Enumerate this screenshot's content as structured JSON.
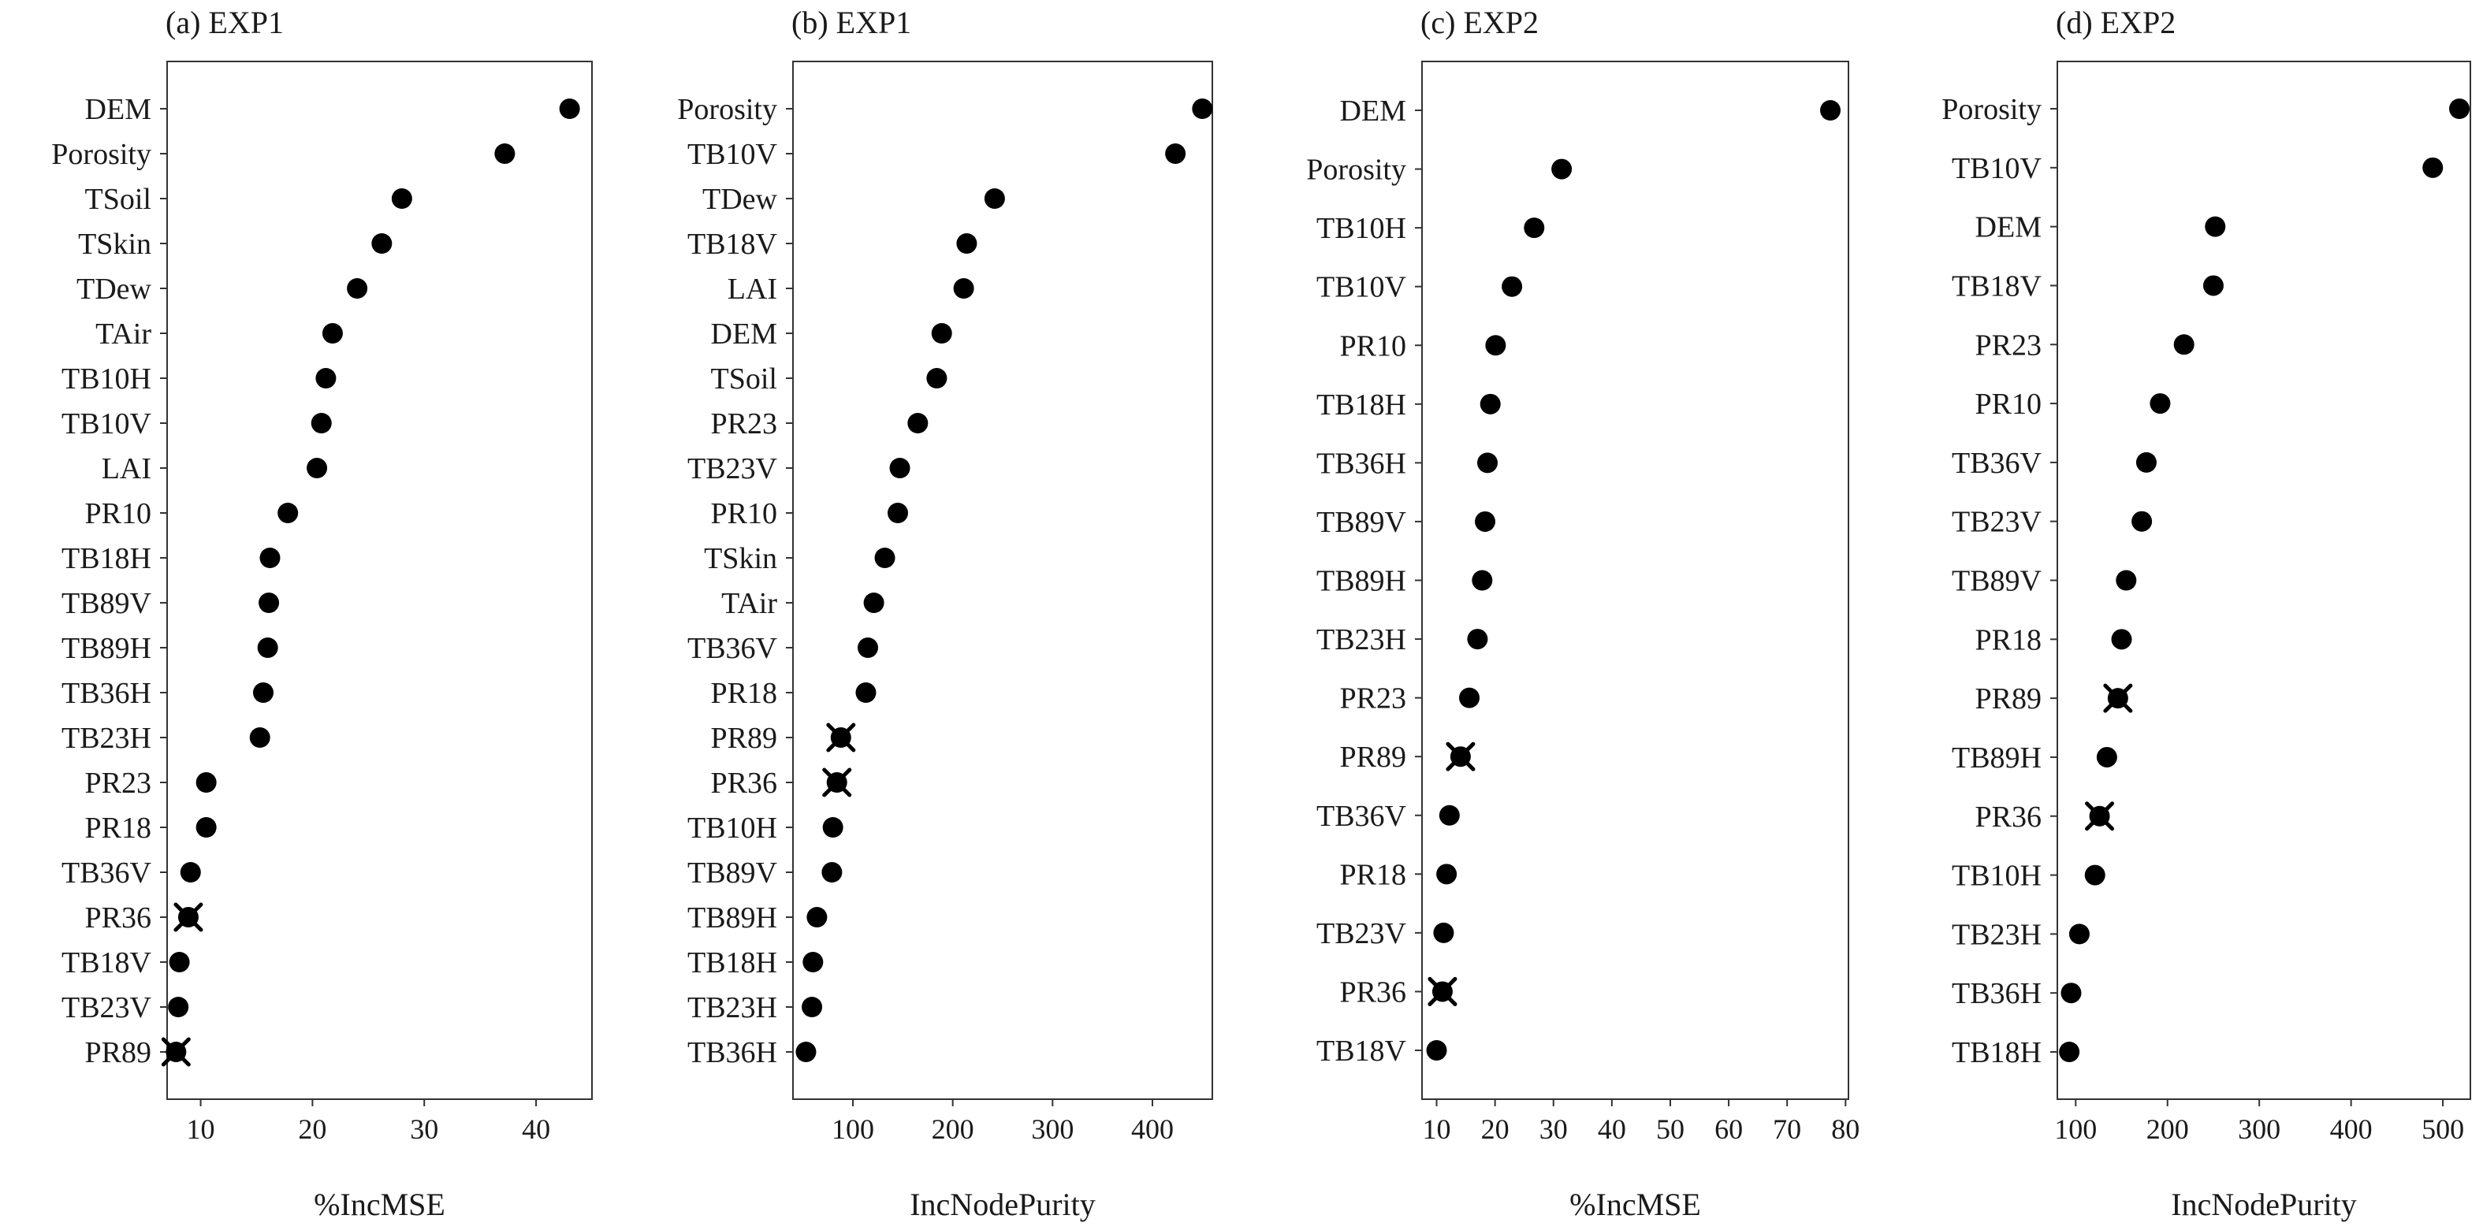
{
  "chart_data": [
    {
      "type": "scatter",
      "title": "(a) EXP1",
      "xlabel": "%IncMSE",
      "xlim": [
        7,
        45
      ],
      "xticks": [
        10,
        20,
        30,
        40
      ],
      "crossed": [
        "PR36",
        "PR89"
      ],
      "categories": [
        "DEM",
        "Porosity",
        "TSoil",
        "TSkin",
        "TDew",
        "TAir",
        "TB10H",
        "TB10V",
        "LAI",
        "PR10",
        "TB18H",
        "TB89V",
        "TB89H",
        "TB36H",
        "TB23H",
        "PR23",
        "PR18",
        "TB36V",
        "PR36",
        "TB18V",
        "TB23V",
        "PR89"
      ],
      "values": [
        43.0,
        37.2,
        28.0,
        26.2,
        24.0,
        21.8,
        21.2,
        20.8,
        20.4,
        17.8,
        16.2,
        16.1,
        16.0,
        15.6,
        15.3,
        10.5,
        10.5,
        9.1,
        8.9,
        8.1,
        8.0,
        7.8
      ]
    },
    {
      "type": "scatter",
      "title": "(b) EXP1",
      "xlabel": "IncNodePurity",
      "xlim": [
        40,
        460
      ],
      "xticks": [
        100,
        200,
        300,
        400
      ],
      "crossed": [
        "PR89",
        "PR36"
      ],
      "categories": [
        "Porosity",
        "TB10V",
        "TDew",
        "TB18V",
        "LAI",
        "DEM",
        "TSoil",
        "PR23",
        "TB23V",
        "PR10",
        "TSkin",
        "TAir",
        "TB36V",
        "PR18",
        "PR89",
        "PR36",
        "TB10H",
        "TB89V",
        "TB89H",
        "TB18H",
        "TB23H",
        "TB36H"
      ],
      "values": [
        450,
        423,
        242,
        214,
        211,
        189,
        184,
        165,
        147,
        145,
        132,
        121,
        115,
        113,
        88,
        84,
        80,
        79,
        64,
        60,
        59,
        53
      ]
    },
    {
      "type": "scatter",
      "title": "(c) EXP2",
      "xlabel": "%IncMSE",
      "xlim": [
        7.5,
        80.5
      ],
      "xticks": [
        10,
        20,
        30,
        40,
        50,
        60,
        70,
        80
      ],
      "crossed": [
        "PR89",
        "PR36"
      ],
      "categories": [
        "DEM",
        "Porosity",
        "TB10H",
        "TB10V",
        "PR10",
        "TB18H",
        "TB36H",
        "TB89V",
        "TB89H",
        "TB23H",
        "PR23",
        "PR89",
        "TB36V",
        "PR18",
        "TB23V",
        "PR36",
        "TB18V"
      ],
      "values": [
        77.4,
        31.4,
        26.7,
        22.9,
        20.1,
        19.2,
        18.7,
        18.3,
        17.8,
        17.0,
        15.6,
        14.1,
        12.2,
        11.7,
        11.2,
        11.0,
        10.0
      ]
    },
    {
      "type": "scatter",
      "title": "(d) EXP2",
      "xlabel": "IncNodePurity",
      "xlim": [
        80,
        530
      ],
      "xticks": [
        100,
        200,
        300,
        400,
        500
      ],
      "crossed": [
        "PR89",
        "PR36"
      ],
      "categories": [
        "Porosity",
        "TB10V",
        "DEM",
        "TB18V",
        "PR23",
        "PR10",
        "TB36V",
        "TB23V",
        "TB89V",
        "PR18",
        "PR89",
        "TB89H",
        "PR36",
        "TB10H",
        "TB23H",
        "TB36H",
        "TB18H"
      ],
      "values": [
        518,
        489,
        252,
        250,
        218,
        192,
        177,
        172,
        155,
        150,
        146,
        134,
        126,
        121,
        104,
        95,
        93
      ]
    }
  ]
}
